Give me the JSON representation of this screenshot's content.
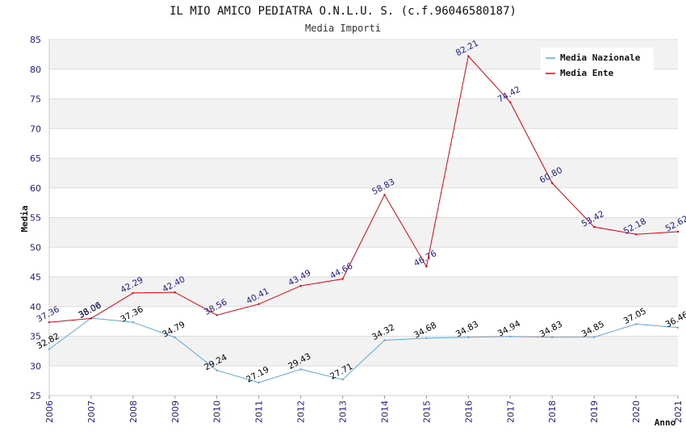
{
  "chart_data": {
    "type": "line",
    "title": "IL MIO AMICO PEDIATRA O.N.L.U. S. (c.f.96046580187)",
    "subtitle": "Media Importi",
    "xlabel": "Anno",
    "ylabel": "Media",
    "ylim": [
      25,
      85
    ],
    "yticks": [
      25,
      30,
      35,
      40,
      45,
      50,
      55,
      60,
      65,
      70,
      75,
      80,
      85
    ],
    "categories": [
      "2006",
      "2007",
      "2008",
      "2009",
      "2010",
      "2011",
      "2012",
      "2013",
      "2014",
      "2015",
      "2016",
      "2017",
      "2018",
      "2019",
      "2020",
      "2021"
    ],
    "series": [
      {
        "name": "Media Nazionale",
        "color": "#5aa7e0",
        "label_color": "#000000",
        "values": [
          32.82,
          38.06,
          37.36,
          34.79,
          29.24,
          27.19,
          29.43,
          27.71,
          34.32,
          34.68,
          34.83,
          34.94,
          34.83,
          34.85,
          37.05,
          36.46
        ],
        "labels": [
          "32.82",
          "38.06",
          "37.36",
          "34.79",
          "29.24",
          "27.19",
          "29.43",
          "27.71",
          "34.32",
          "34.68",
          "34.83",
          "34.94",
          "34.83",
          "34.85",
          "37.05",
          "36.46"
        ]
      },
      {
        "name": "Media Ente",
        "color": "#e8000b",
        "label_color": "#1a1a99",
        "values": [
          37.36,
          38.0,
          42.29,
          42.4,
          38.56,
          40.41,
          43.49,
          44.66,
          58.83,
          46.76,
          82.21,
          74.42,
          60.8,
          53.42,
          52.18,
          52.62
        ],
        "labels": [
          "37.36",
          "38.00",
          "42.29",
          "42.40",
          "38.56",
          "40.41",
          "43.49",
          "44.66",
          "58.83",
          "46.76",
          "82.21",
          "74.42",
          "60.80",
          "53.42",
          "52.18",
          "52.62"
        ]
      }
    ],
    "legend_position": "top-right",
    "background_bands": true
  }
}
